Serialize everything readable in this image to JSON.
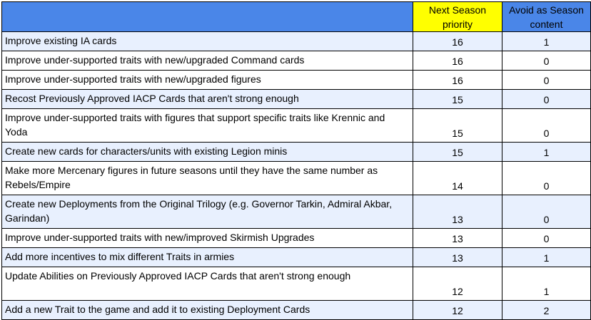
{
  "headers": {
    "task": "",
    "priority": "Next Season priority",
    "avoid": "Avoid as Season content"
  },
  "colors": {
    "header_blue": "#4a86e8",
    "header_yellow": "#ffff00",
    "row_band": "#e8f0fe"
  },
  "rows": [
    {
      "task": "Improve existing IA cards",
      "priority": "16",
      "avoid": "1"
    },
    {
      "task": "Improve under-supported traits with new/upgraded Command cards",
      "priority": "16",
      "avoid": "0"
    },
    {
      "task": "Improve under-supported traits with new/upgraded figures",
      "priority": "16",
      "avoid": "0"
    },
    {
      "task": "Recost Previously Approved IACP Cards that aren't strong enough",
      "priority": "15",
      "avoid": "0"
    },
    {
      "task": "Improve under-supported traits with figures that support specific traits like Krennic and Yoda",
      "priority": "15",
      "avoid": "0"
    },
    {
      "task": "Create new cards for characters/units with existing Legion minis",
      "priority": "15",
      "avoid": "1"
    },
    {
      "task": "Make more Mercenary figures in future seasons until they have the same number as Rebels/Empire",
      "priority": "14",
      "avoid": "0"
    },
    {
      "task": "Create new Deployments from the Original Trilogy (e.g. Governor Tarkin, Admiral Akbar, Garindan)",
      "priority": "13",
      "avoid": "0"
    },
    {
      "task": "Improve under-supported traits with new/improved Skirmish Upgrades",
      "priority": "13",
      "avoid": "0"
    },
    {
      "task": "Add more incentives to mix different Traits in armies",
      "priority": "13",
      "avoid": "1"
    },
    {
      "task": "Update Abilities on Previously Approved IACP Cards that aren't strong enough",
      "priority": "12",
      "avoid": "1"
    },
    {
      "task": "Add a new Trait to the game and add it to existing Deployment Cards",
      "priority": "12",
      "avoid": "2"
    }
  ]
}
